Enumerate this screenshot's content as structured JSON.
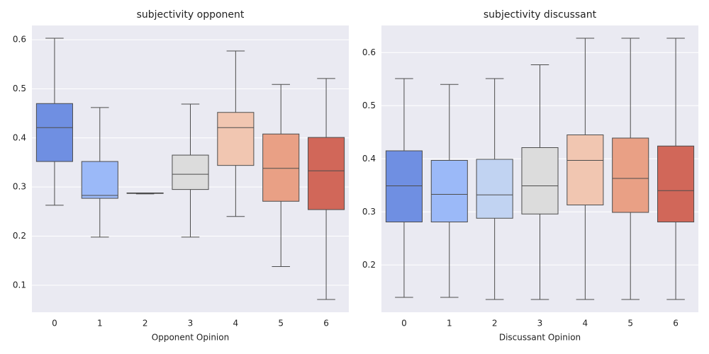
{
  "chart_data": [
    {
      "type": "box",
      "title": "subjectivity opponent",
      "x_label": "Opponent Opinion",
      "categories": [
        "0",
        "1",
        "2",
        "3",
        "4",
        "5",
        "6"
      ],
      "colors": [
        "#6f8fe2",
        "#9bb9f8",
        "#c1d3f2",
        "#dcdcdc",
        "#f1c6b1",
        "#e9a085",
        "#d16759"
      ],
      "boxes": [
        {
          "whislo": 0.263,
          "q1": 0.352,
          "med": 0.421,
          "q3": 0.47,
          "whishi": 0.603
        },
        {
          "whislo": 0.198,
          "q1": 0.277,
          "med": 0.283,
          "q3": 0.352,
          "whishi": 0.462
        },
        {
          "whislo": 0.286,
          "q1": 0.287,
          "med": 0.287,
          "q3": 0.288,
          "whishi": 0.288
        },
        {
          "whislo": 0.198,
          "q1": 0.295,
          "med": 0.326,
          "q3": 0.365,
          "whishi": 0.469
        },
        {
          "whislo": 0.24,
          "q1": 0.344,
          "med": 0.421,
          "q3": 0.452,
          "whishi": 0.577
        },
        {
          "whislo": 0.138,
          "q1": 0.271,
          "med": 0.338,
          "q3": 0.408,
          "whishi": 0.509
        },
        {
          "whislo": 0.071,
          "q1": 0.254,
          "med": 0.333,
          "q3": 0.401,
          "whishi": 0.521
        }
      ],
      "ylim": [
        0.045,
        0.629
      ],
      "yticks": [
        0.1,
        0.2,
        0.3,
        0.4,
        0.5,
        0.6
      ],
      "grid": true
    },
    {
      "type": "box",
      "title": "subjectivity discussant",
      "x_label": "Discussant Opinion",
      "categories": [
        "0",
        "1",
        "2",
        "3",
        "4",
        "5",
        "6"
      ],
      "colors": [
        "#6f8fe2",
        "#9bb9f8",
        "#c1d3f2",
        "#dcdcdc",
        "#f1c6b1",
        "#e9a085",
        "#d16759"
      ],
      "boxes": [
        {
          "whislo": 0.139,
          "q1": 0.281,
          "med": 0.349,
          "q3": 0.415,
          "whishi": 0.551
        },
        {
          "whislo": 0.139,
          "q1": 0.281,
          "med": 0.333,
          "q3": 0.397,
          "whishi": 0.54
        },
        {
          "whislo": 0.135,
          "q1": 0.288,
          "med": 0.332,
          "q3": 0.399,
          "whishi": 0.551
        },
        {
          "whislo": 0.135,
          "q1": 0.296,
          "med": 0.349,
          "q3": 0.421,
          "whishi": 0.577
        },
        {
          "whislo": 0.135,
          "q1": 0.313,
          "med": 0.397,
          "q3": 0.445,
          "whishi": 0.627
        },
        {
          "whislo": 0.135,
          "q1": 0.299,
          "med": 0.363,
          "q3": 0.439,
          "whishi": 0.627
        },
        {
          "whislo": 0.135,
          "q1": 0.281,
          "med": 0.34,
          "q3": 0.424,
          "whishi": 0.627
        }
      ],
      "ylim": [
        0.111,
        0.651
      ],
      "yticks": [
        0.2,
        0.3,
        0.4,
        0.5,
        0.6
      ],
      "grid": true
    }
  ]
}
